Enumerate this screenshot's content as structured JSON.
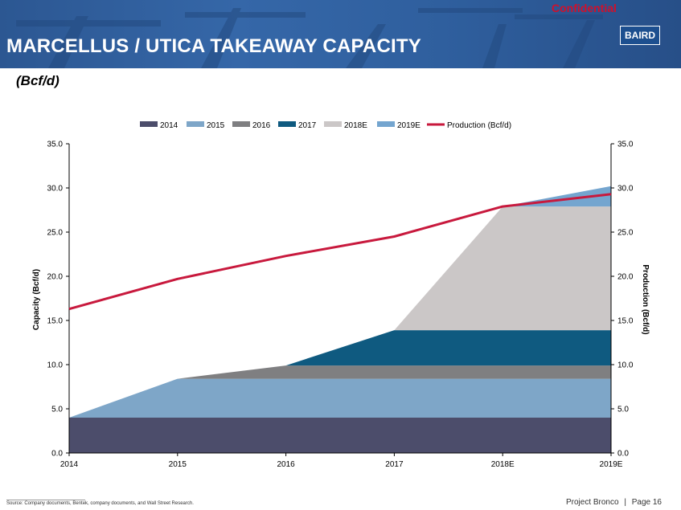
{
  "header": {
    "title": "MARCELLUS / UTICA TAKEAWAY CAPACITY",
    "confidential": "Confidential",
    "logo": "BAIRD"
  },
  "subtitle": "(Bcf/d)",
  "colors": {
    "banner": "#2f5f9e",
    "c2014": "#4c4d6b",
    "c2015": "#7ea6c8",
    "c2016": "#7f7f81",
    "c2017": "#0f5a80",
    "c2018": "#cbc7c7",
    "c2019": "#74a5cf",
    "production": "#c8193d"
  },
  "chart_data": {
    "type": "area",
    "categories": [
      "2014",
      "2015",
      "2016",
      "2017",
      "2018E",
      "2019E"
    ],
    "series": [
      {
        "name": "2014",
        "values": [
          4.0,
          4.0,
          4.0,
          4.0,
          4.0,
          4.0
        ]
      },
      {
        "name": "2015",
        "values": [
          0.0,
          4.4,
          4.4,
          4.4,
          4.4,
          4.4
        ]
      },
      {
        "name": "2016",
        "values": [
          0.0,
          0.0,
          1.5,
          1.5,
          1.5,
          1.5
        ]
      },
      {
        "name": "2017",
        "values": [
          0.0,
          0.0,
          0.0,
          4.0,
          4.0,
          4.0
        ]
      },
      {
        "name": "2018E",
        "values": [
          0.0,
          0.0,
          0.0,
          0.0,
          14.0,
          14.0
        ]
      },
      {
        "name": "2019E",
        "values": [
          0.0,
          0.0,
          0.0,
          0.0,
          0.0,
          2.3
        ]
      }
    ],
    "line_series": {
      "name": "Production (Bcf/d)",
      "values": [
        16.3,
        19.7,
        22.3,
        24.5,
        27.9,
        29.3
      ]
    },
    "ylabel": "Capacity (Bcf/d)",
    "ylabel_right": "Production (Bcf/d)",
    "ylim": [
      0,
      35
    ],
    "y_ticks": [
      "0.0",
      "5.0",
      "10.0",
      "15.0",
      "20.0",
      "25.0",
      "30.0",
      "35.0"
    ],
    "legend_position": "top"
  },
  "footer": {
    "source": "Source: Company documents, Bentek, company documents, and Wall Street Research.",
    "project": "Project Bronco",
    "separator": "|",
    "page": "Page 16"
  }
}
